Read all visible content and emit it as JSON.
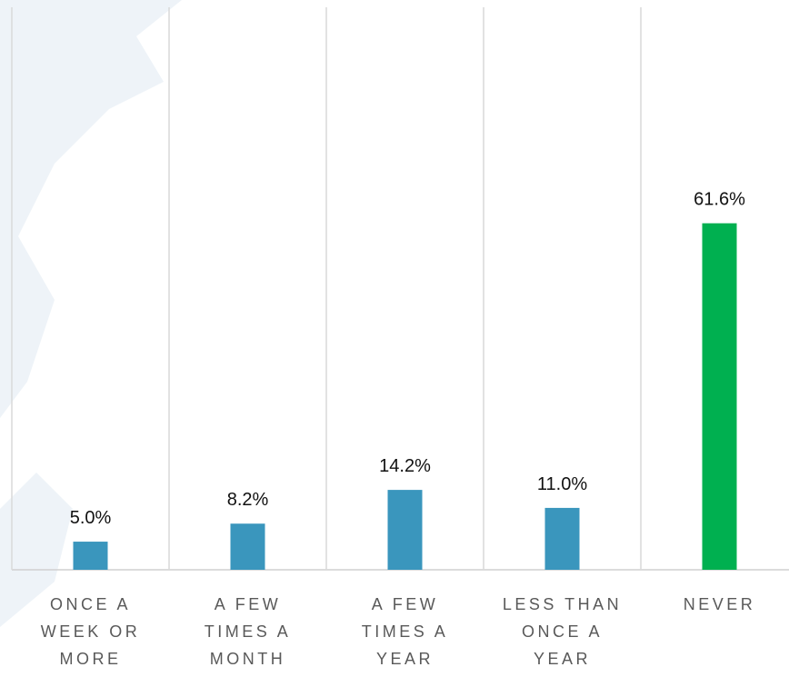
{
  "chart_data": {
    "type": "bar",
    "categories": [
      "ONCE A WEEK OR MORE",
      "A FEW TIMES A MONTH",
      "A FEW TIMES A YEAR",
      "LESS THAN ONCE A YEAR",
      "NEVER"
    ],
    "values": [
      5.0,
      8.2,
      14.2,
      11.0,
      61.6
    ],
    "value_labels": [
      "5.0%",
      "8.2%",
      "14.2%",
      "11.0%",
      "61.6%"
    ],
    "colors": [
      "#3a96bd",
      "#3a96bd",
      "#3a96bd",
      "#3a96bd",
      "#00b050"
    ],
    "ylim": [
      0,
      100
    ]
  }
}
